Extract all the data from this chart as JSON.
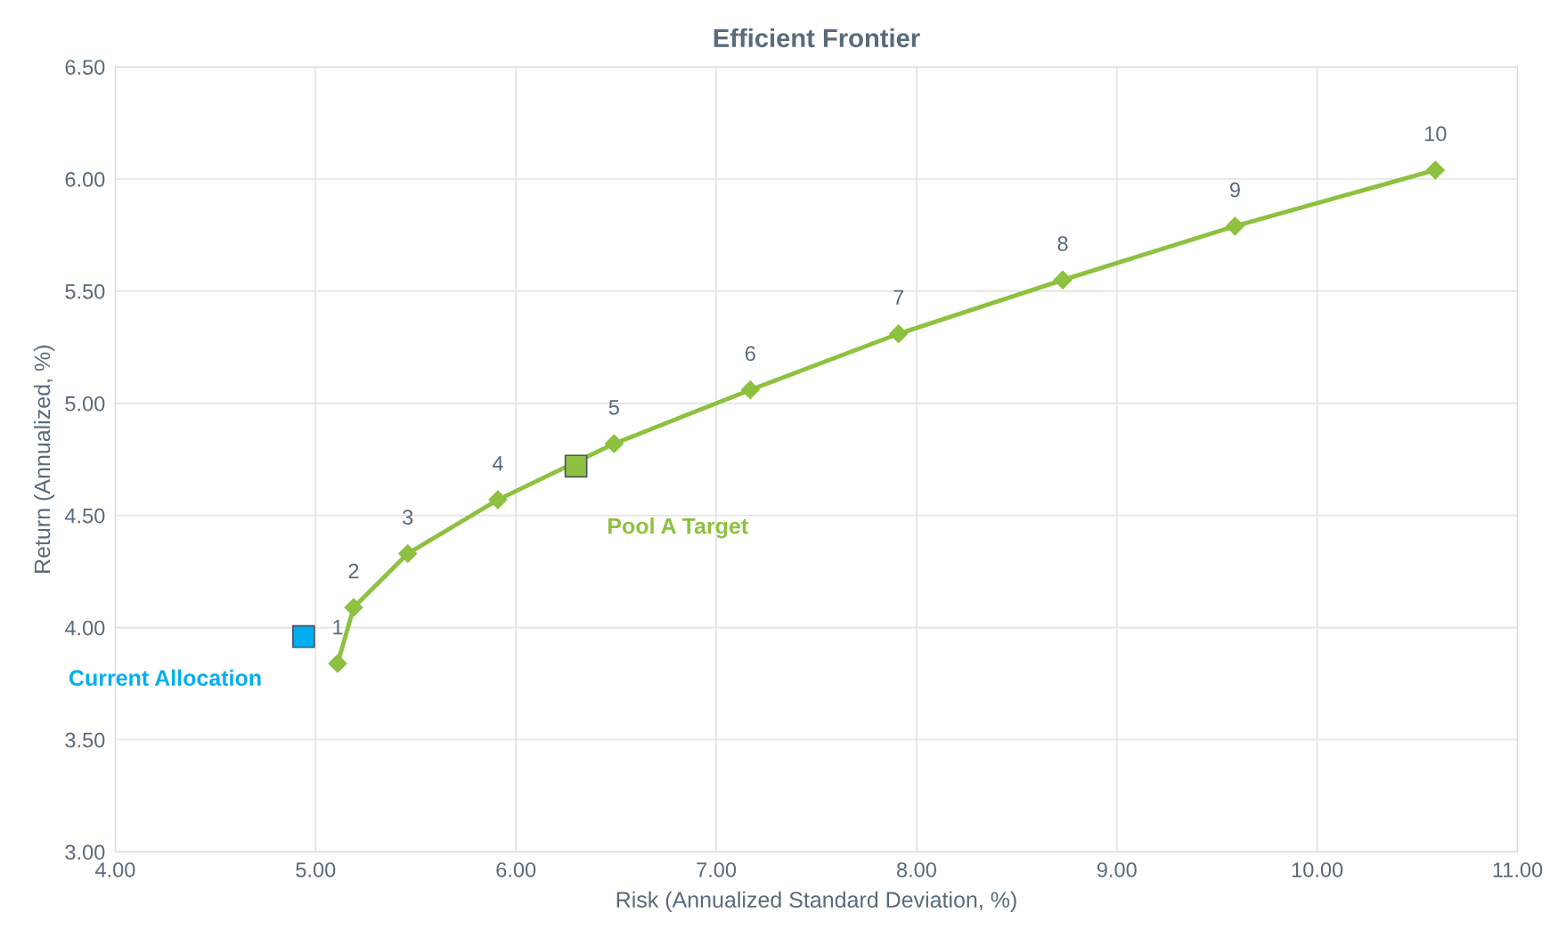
{
  "chart_data": {
    "type": "line",
    "title": "Efficient Frontier",
    "xlabel": "Risk (Annualized Standard Deviation, %)",
    "ylabel": "Return (Annualized, %)",
    "xlim": [
      4.0,
      11.0
    ],
    "xticks": [
      {
        "value": 4,
        "label": "4.00"
      },
      {
        "value": 5,
        "label": "5.00"
      },
      {
        "value": 6,
        "label": "6.00"
      },
      {
        "value": 7,
        "label": "7.00"
      },
      {
        "value": 8,
        "label": "8.00"
      },
      {
        "value": 9,
        "label": "9.00"
      },
      {
        "value": 10,
        "label": "10.00"
      },
      {
        "value": 11,
        "label": "11.00"
      }
    ],
    "ylim": [
      3.0,
      6.5
    ],
    "yticks": [
      {
        "value": 3,
        "label": "3.00"
      },
      {
        "value": 3.5,
        "label": "3.50"
      },
      {
        "value": 4,
        "label": "4.00"
      },
      {
        "value": 4.5,
        "label": "4.50"
      },
      {
        "value": 5,
        "label": "5.00"
      },
      {
        "value": 5.5,
        "label": "5.50"
      },
      {
        "value": 6,
        "label": "6.00"
      },
      {
        "value": 6.5,
        "label": "6.50"
      }
    ],
    "grid": true,
    "annotations": [
      {
        "text": "1",
        "x": 5.11,
        "y": 3.84
      },
      {
        "text": "2",
        "x": 5.19,
        "y": 4.09
      },
      {
        "text": "3",
        "x": 5.46,
        "y": 4.33
      },
      {
        "text": "4",
        "x": 5.91,
        "y": 4.57
      },
      {
        "text": "5",
        "x": 6.49,
        "y": 4.82
      },
      {
        "text": "6",
        "x": 7.17,
        "y": 5.06
      },
      {
        "text": "7",
        "x": 7.91,
        "y": 5.31
      },
      {
        "text": "8",
        "x": 8.73,
        "y": 5.55
      },
      {
        "text": "9",
        "x": 9.59,
        "y": 5.79
      },
      {
        "text": "10",
        "x": 10.59,
        "y": 6.04
      }
    ],
    "series": [
      {
        "color": "#8dc13f",
        "marker": "diamond",
        "line_style": "solid",
        "x": [
          5.11,
          5.19,
          5.46,
          5.91,
          6.49,
          7.17,
          7.91,
          8.73,
          9.59,
          10.59
        ],
        "values": [
          3.84,
          4.09,
          4.33,
          4.57,
          4.82,
          5.06,
          5.31,
          5.55,
          5.79,
          6.04
        ]
      },
      {
        "type": "scatter",
        "name": "Current Allocation",
        "color": "#00aeef",
        "marker": "square",
        "x": [
          4.94
        ],
        "values": [
          3.96
        ]
      },
      {
        "type": "scatter",
        "name": "Pool A Target",
        "color": "#8dc13f",
        "marker": "square",
        "x": [
          6.3
        ],
        "values": [
          4.72
        ]
      }
    ]
  }
}
